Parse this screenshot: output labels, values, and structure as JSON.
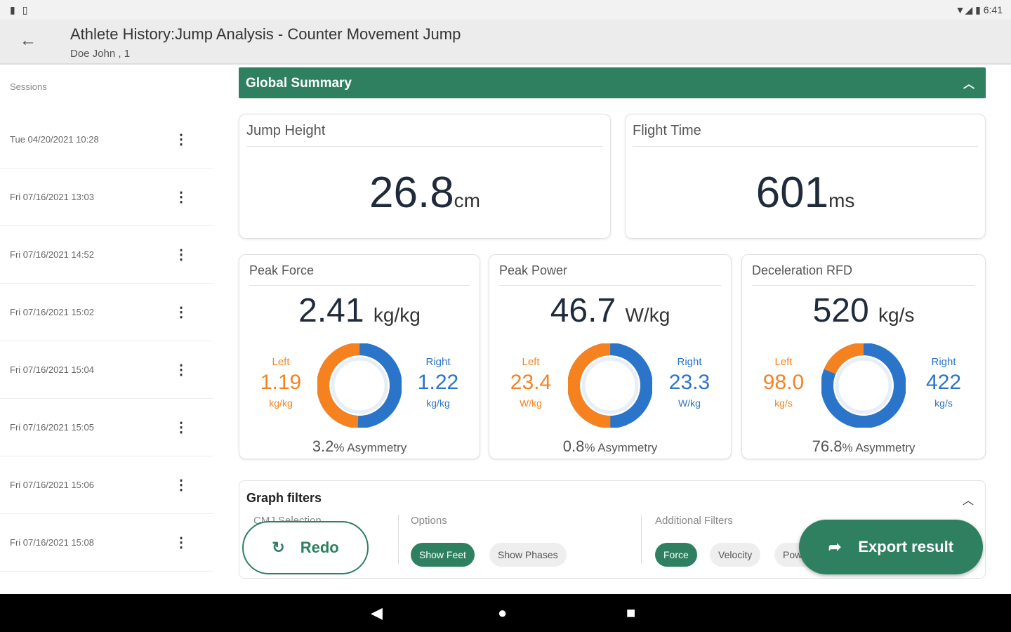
{
  "status": {
    "time": "6:41"
  },
  "appbar": {
    "title": "Athlete History:Jump Analysis - Counter Movement Jump",
    "subtitle": "Doe John , 1"
  },
  "sidebar": {
    "heading": "Sessions",
    "sessions": [
      "Tue 04/20/2021 10:28",
      "Fri 07/16/2021 13:03",
      "Fri 07/16/2021 14:52",
      "Fri 07/16/2021 15:02",
      "Fri 07/16/2021 15:04",
      "Fri 07/16/2021 15:05",
      "Fri 07/16/2021 15:06",
      "Fri 07/16/2021 15:08"
    ]
  },
  "summary": {
    "title": "Global Summary",
    "jump_height": {
      "label": "Jump Height",
      "value": "26.8",
      "unit": "cm"
    },
    "flight_time": {
      "label": "Flight Time",
      "value": "601",
      "unit": "ms"
    },
    "metrics": [
      {
        "label": "Peak Force",
        "value": "2.41",
        "unit": "kg/kg",
        "left_label": "Left",
        "left": "1.19",
        "left_unit": "kg/kg",
        "right_label": "Right",
        "right": "1.22",
        "right_unit": "kg/kg",
        "left_fraction": 0.494,
        "asym": "3.2",
        "asym_label": "% Asymmetry"
      },
      {
        "label": "Peak Power",
        "value": "46.7",
        "unit": "W/kg",
        "left_label": "Left",
        "left": "23.4",
        "left_unit": "W/kg",
        "right_label": "Right",
        "right": "23.3",
        "right_unit": "W/kg",
        "left_fraction": 0.501,
        "asym": "0.8",
        "asym_label": "% Asymmetry"
      },
      {
        "label": "Deceleration RFD",
        "value": "520",
        "unit": "kg/s",
        "left_label": "Left",
        "left": "98.0",
        "left_unit": "kg/s",
        "right_label": "Right",
        "right": "422",
        "right_unit": "kg/s",
        "left_fraction": 0.188,
        "asym": "76.8",
        "asym_label": "% Asymmetry"
      }
    ]
  },
  "filters": {
    "title": "Graph filters",
    "cmj_label": "CMJ Selection",
    "options_label": "Options",
    "additional_label": "Additional Filters",
    "options": [
      "Show Feet",
      "Show Phases"
    ],
    "additional": [
      "Force",
      "Velocity",
      "Power"
    ]
  },
  "actions": {
    "redo": "Redo",
    "export": "Export result"
  },
  "colors": {
    "accent": "#2e8060",
    "left": "#f5821f",
    "right": "#2a74c9"
  }
}
